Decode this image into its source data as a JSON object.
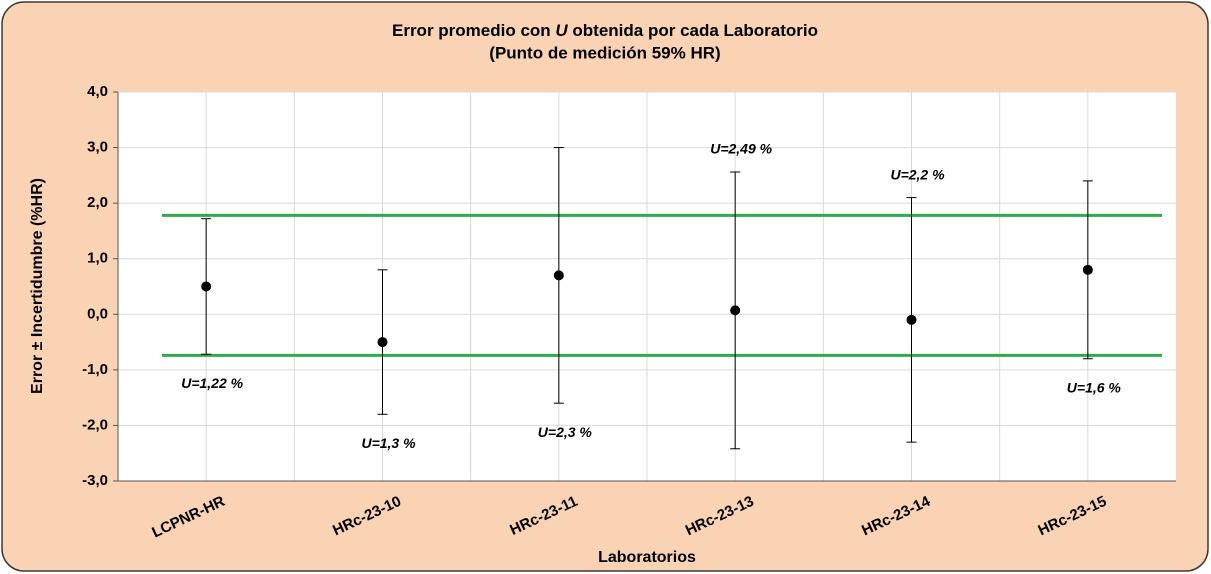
{
  "chart_data": {
    "type": "errorbar",
    "title": {
      "before": "Error promedio con ",
      "italic": "U",
      "after": " obtenida por cada Laboratorio"
    },
    "subtitle": "(Punto de medición 59% HR)",
    "x_label": "Laboratorios",
    "y_label": "Error ± Incertidumbre (%HR)",
    "categories": [
      "LCPNR-HR",
      "HRc-23-10",
      "HRc-23-11",
      "HRc-23-13",
      "HRc-23-14",
      "HRc-23-15"
    ],
    "values": [
      0.5,
      -0.5,
      0.7,
      0.07,
      -0.1,
      0.8
    ],
    "errors": [
      1.22,
      1.3,
      2.3,
      2.49,
      2.2,
      1.6
    ],
    "error_labels": [
      "U=1,22 %",
      "U=1,3 %",
      "U=2,3 %",
      "U=2,49 %",
      "U=2,2 %",
      "U=1,6 %"
    ],
    "label_positions": [
      "below",
      "below",
      "below",
      "above",
      "above",
      "below"
    ],
    "reference_lines": [
      1.78,
      -0.74
    ],
    "reference_color": "#2faa4f",
    "color": "#000000",
    "ylim": [
      -3,
      4
    ],
    "yticks": [
      {
        "value": -3,
        "label": "-3,0"
      },
      {
        "value": -2,
        "label": "-2,0"
      },
      {
        "value": -1,
        "label": "-1,0"
      },
      {
        "value": 0,
        "label": "0,0"
      },
      {
        "value": 1,
        "label": "1,0"
      },
      {
        "value": 2,
        "label": "2,0"
      },
      {
        "value": 3,
        "label": "3,0"
      },
      {
        "value": 4,
        "label": "4,0"
      }
    ],
    "grid": true
  }
}
